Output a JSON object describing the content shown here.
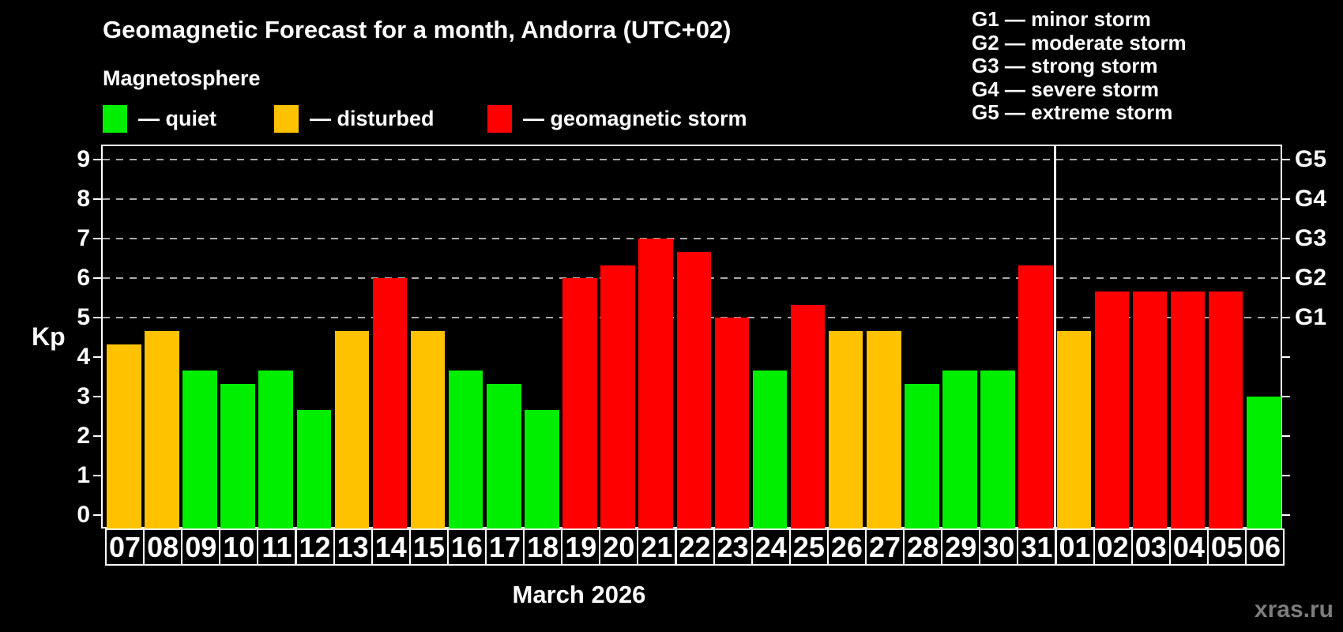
{
  "header": {
    "title": "Geomagnetic Forecast for a month, Andorra (UTC+02)",
    "subtitle": "Magnetosphere"
  },
  "legend": {
    "items": [
      {
        "key": "quiet",
        "label": "— quiet"
      },
      {
        "key": "disturbed",
        "label": "— disturbed"
      },
      {
        "key": "storm",
        "label": "— geomagnetic storm"
      }
    ]
  },
  "storm_scale_legend": {
    "items": [
      "G1 — minor storm",
      "G2 — moderate storm",
      "G3 — strong storm",
      "G4 — severe storm",
      "G5 — extreme storm"
    ]
  },
  "colors": {
    "quiet": "#00ee00",
    "disturbed": "#ffc200",
    "storm": "#ff0000",
    "grid": "#a9a9a9",
    "frame": "#ffffff",
    "watermark": "#7d7d7d"
  },
  "chart_data": {
    "type": "bar",
    "title": "Geomagnetic Forecast for a month, Andorra (UTC+02)",
    "ylabel": "Kp",
    "xlabel": "March 2026",
    "ylim": [
      0,
      9.4
    ],
    "yticks": [
      0,
      1,
      2,
      3,
      4,
      5,
      6,
      7,
      8,
      9
    ],
    "gridlines_at": [
      5,
      6,
      7,
      8,
      9
    ],
    "grid_on": true,
    "legend_position": "top-left",
    "right_axis": [
      {
        "kp": 5,
        "label": "G1"
      },
      {
        "kp": 6,
        "label": "G2"
      },
      {
        "kp": 7,
        "label": "G3"
      },
      {
        "kp": 8,
        "label": "G4"
      },
      {
        "kp": 9,
        "label": "G5"
      }
    ],
    "month_separator_after_index": 24,
    "bars": [
      {
        "day": "07",
        "kp": 4.33,
        "level": "disturbed"
      },
      {
        "day": "08",
        "kp": 4.67,
        "level": "disturbed"
      },
      {
        "day": "09",
        "kp": 3.67,
        "level": "quiet"
      },
      {
        "day": "10",
        "kp": 3.33,
        "level": "quiet"
      },
      {
        "day": "11",
        "kp": 3.67,
        "level": "quiet"
      },
      {
        "day": "12",
        "kp": 2.67,
        "level": "quiet"
      },
      {
        "day": "13",
        "kp": 4.67,
        "level": "disturbed"
      },
      {
        "day": "14",
        "kp": 6.0,
        "level": "storm"
      },
      {
        "day": "15",
        "kp": 4.67,
        "level": "disturbed"
      },
      {
        "day": "16",
        "kp": 3.67,
        "level": "quiet"
      },
      {
        "day": "17",
        "kp": 3.33,
        "level": "quiet"
      },
      {
        "day": "18",
        "kp": 2.67,
        "level": "quiet"
      },
      {
        "day": "19",
        "kp": 6.0,
        "level": "storm"
      },
      {
        "day": "20",
        "kp": 6.33,
        "level": "storm"
      },
      {
        "day": "21",
        "kp": 7.0,
        "level": "storm"
      },
      {
        "day": "22",
        "kp": 6.67,
        "level": "storm"
      },
      {
        "day": "23",
        "kp": 5.0,
        "level": "storm"
      },
      {
        "day": "24",
        "kp": 3.67,
        "level": "quiet"
      },
      {
        "day": "25",
        "kp": 5.33,
        "level": "storm"
      },
      {
        "day": "26",
        "kp": 4.67,
        "level": "disturbed"
      },
      {
        "day": "27",
        "kp": 4.67,
        "level": "disturbed"
      },
      {
        "day": "28",
        "kp": 3.33,
        "level": "quiet"
      },
      {
        "day": "29",
        "kp": 3.67,
        "level": "quiet"
      },
      {
        "day": "30",
        "kp": 3.67,
        "level": "quiet"
      },
      {
        "day": "31",
        "kp": 6.33,
        "level": "storm"
      },
      {
        "day": "01",
        "kp": 4.67,
        "level": "disturbed"
      },
      {
        "day": "02",
        "kp": 5.67,
        "level": "storm"
      },
      {
        "day": "03",
        "kp": 5.67,
        "level": "storm"
      },
      {
        "day": "04",
        "kp": 5.67,
        "level": "storm"
      },
      {
        "day": "05",
        "kp": 5.67,
        "level": "storm"
      },
      {
        "day": "06",
        "kp": 3.0,
        "level": "quiet"
      }
    ]
  },
  "footer": {
    "xlabel": "March 2026",
    "watermark": "xras.ru"
  }
}
